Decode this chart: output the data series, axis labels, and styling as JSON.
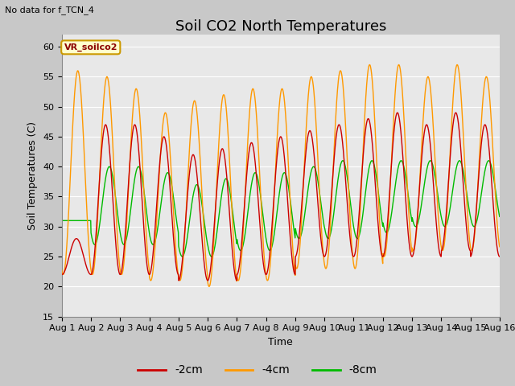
{
  "title": "Soil CO2 North Temperatures",
  "subtitle": "No data for f_TCN_4",
  "xlabel": "Time",
  "ylabel": "Soil Temperatures (C)",
  "ylim": [
    15,
    62
  ],
  "yticks": [
    15,
    20,
    25,
    30,
    35,
    40,
    45,
    50,
    55,
    60
  ],
  "xtick_labels": [
    "Aug 1",
    "Aug 2",
    "Aug 3",
    "Aug 4",
    "Aug 5",
    "Aug 6",
    "Aug 7",
    "Aug 8",
    "Aug 9",
    "Aug 10",
    "Aug 11",
    "Aug 12",
    "Aug 13",
    "Aug 14",
    "Aug 15",
    "Aug 16"
  ],
  "color_2cm": "#cc0000",
  "color_4cm": "#ff9900",
  "color_8cm": "#00bb00",
  "legend_label_2cm": "-2cm",
  "legend_label_4cm": "-4cm",
  "legend_label_8cm": "-8cm",
  "box_label": "VR_soilco2",
  "fig_bg_color": "#c8c8c8",
  "plot_bg_color": "#e8e8e8",
  "grid_color": "#ffffff",
  "title_fontsize": 13,
  "axis_label_fontsize": 9,
  "tick_fontsize": 8,
  "peaks_2cm": [
    28,
    47,
    47,
    45,
    42,
    43,
    44,
    45,
    46,
    47,
    48,
    49,
    47,
    49,
    47
  ],
  "mins_2cm": [
    22,
    22,
    22,
    22,
    21,
    21,
    22,
    22,
    25,
    25,
    25,
    25,
    25,
    26,
    25
  ],
  "peaks_4cm": [
    56,
    55,
    53,
    49,
    51,
    52,
    53,
    53,
    55,
    56,
    57,
    57,
    55,
    57,
    55
  ],
  "mins_4cm": [
    22,
    22,
    22,
    21,
    21,
    20,
    21,
    21,
    23,
    23,
    23,
    25,
    26,
    26,
    26
  ],
  "peaks_8cm": [
    31,
    40,
    40,
    39,
    37,
    38,
    39,
    39,
    40,
    41,
    41,
    41,
    41,
    41,
    41
  ],
  "mins_8cm": [
    31,
    27,
    27,
    27,
    25,
    25,
    26,
    26,
    28,
    28,
    28,
    29,
    30,
    30,
    30
  ],
  "phase_2cm": -1.5707963,
  "phase_4cm": -1.8707963,
  "phase_8cm": -2.3707963,
  "num_points": 1500
}
